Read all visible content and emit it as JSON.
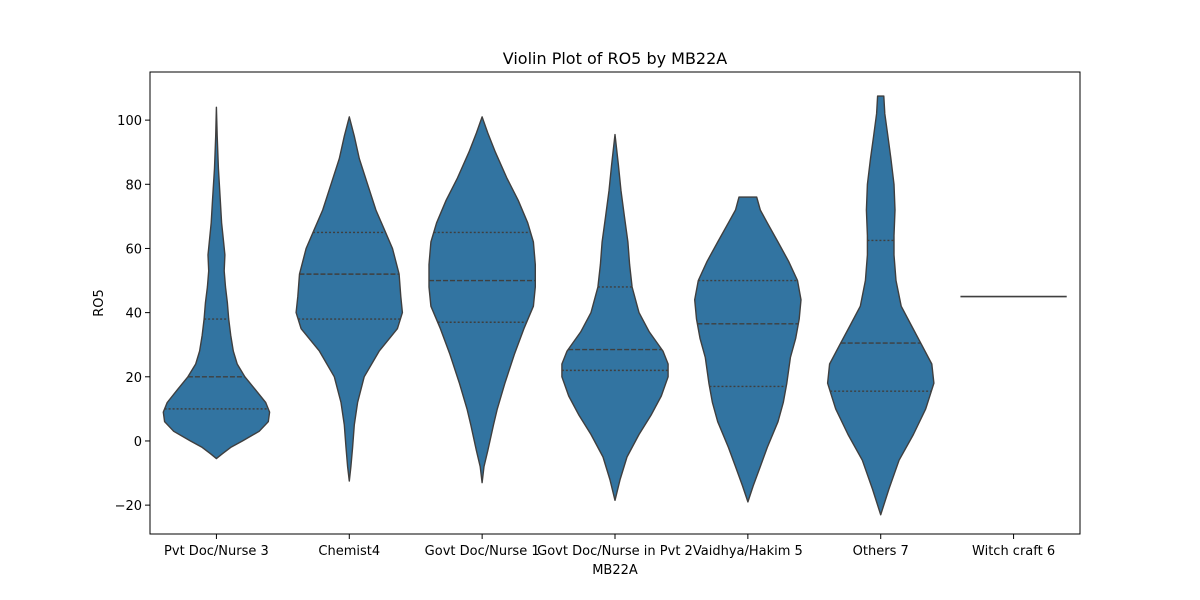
{
  "chart_data": {
    "type": "violin",
    "title": "Violin Plot of RO5 by MB22A",
    "xlabel": "MB22A",
    "ylabel": "RO5",
    "ylim": [
      -29,
      115
    ],
    "yticks": [
      -20,
      0,
      20,
      40,
      60,
      80,
      100
    ],
    "grid": false,
    "legend": "none",
    "colors": {
      "fill": "#3274a1",
      "edge": "#3f3f3f",
      "axis": "#000000"
    },
    "categories": [
      "Pvt Doc/Nurse 3",
      "Chemist4",
      "Govt Doc/Nurse 1",
      "Govt Doc/Nurse in Pvt 2",
      "Vaidhya/Hakim 5",
      "Others 7",
      "Witch craft 6"
    ],
    "violins": [
      {
        "category": "Pvt Doc/Nurse 3",
        "quartiles": [
          10,
          20,
          38
        ],
        "profile": [
          [
            -5.5,
            0
          ],
          [
            -4,
            0.045
          ],
          [
            -2,
            0.11
          ],
          [
            0,
            0.2
          ],
          [
            3,
            0.33
          ],
          [
            6,
            0.4
          ],
          [
            9,
            0.41
          ],
          [
            12,
            0.38
          ],
          [
            16,
            0.3
          ],
          [
            20,
            0.22
          ],
          [
            24,
            0.16
          ],
          [
            28,
            0.13
          ],
          [
            33,
            0.11
          ],
          [
            38,
            0.095
          ],
          [
            43,
            0.085
          ],
          [
            48,
            0.07
          ],
          [
            53,
            0.06
          ],
          [
            58,
            0.065
          ],
          [
            62,
            0.055
          ],
          [
            68,
            0.04
          ],
          [
            75,
            0.03
          ],
          [
            85,
            0.015
          ],
          [
            95,
            0.006
          ],
          [
            104,
            0
          ]
        ]
      },
      {
        "category": "Chemist4",
        "quartiles": [
          38,
          52,
          65
        ],
        "profile": [
          [
            -12.5,
            0
          ],
          [
            -8,
            0.01
          ],
          [
            -2,
            0.02
          ],
          [
            5,
            0.03
          ],
          [
            12,
            0.05
          ],
          [
            20,
            0.09
          ],
          [
            28,
            0.18
          ],
          [
            35,
            0.29
          ],
          [
            40,
            0.32
          ],
          [
            45,
            0.31
          ],
          [
            52,
            0.3
          ],
          [
            60,
            0.26
          ],
          [
            66,
            0.21
          ],
          [
            72,
            0.16
          ],
          [
            80,
            0.11
          ],
          [
            88,
            0.06
          ],
          [
            95,
            0.03
          ],
          [
            101,
            0
          ]
        ]
      },
      {
        "category": "Govt Doc/Nurse 1",
        "quartiles": [
          37,
          50,
          65
        ],
        "profile": [
          [
            -13,
            0
          ],
          [
            -8,
            0.01
          ],
          [
            -3,
            0.03
          ],
          [
            5,
            0.06
          ],
          [
            10,
            0.08
          ],
          [
            18,
            0.12
          ],
          [
            27,
            0.17
          ],
          [
            35,
            0.22
          ],
          [
            42,
            0.27
          ],
          [
            48,
            0.28
          ],
          [
            55,
            0.28
          ],
          [
            62,
            0.27
          ],
          [
            68,
            0.24
          ],
          [
            75,
            0.19
          ],
          [
            82,
            0.13
          ],
          [
            90,
            0.07
          ],
          [
            96,
            0.03
          ],
          [
            101,
            0
          ]
        ]
      },
      {
        "category": "Govt Doc/Nurse in Pvt 2",
        "quartiles": [
          22,
          28.5,
          48
        ],
        "profile": [
          [
            -18.5,
            0
          ],
          [
            -12,
            0.03
          ],
          [
            -5,
            0.07
          ],
          [
            2,
            0.14
          ],
          [
            8,
            0.21
          ],
          [
            14,
            0.27
          ],
          [
            20,
            0.31
          ],
          [
            24,
            0.31
          ],
          [
            28,
            0.28
          ],
          [
            34,
            0.2
          ],
          [
            40,
            0.14
          ],
          [
            48,
            0.1
          ],
          [
            55,
            0.085
          ],
          [
            62,
            0.075
          ],
          [
            70,
            0.055
          ],
          [
            78,
            0.035
          ],
          [
            86,
            0.02
          ],
          [
            95.5,
            0
          ]
        ]
      },
      {
        "category": "Vaidhya/Hakim 5",
        "quartiles": [
          17,
          36.5,
          50
        ],
        "profile": [
          [
            -19,
            0
          ],
          [
            -14,
            0.03
          ],
          [
            -8,
            0.07
          ],
          [
            -2,
            0.11
          ],
          [
            6,
            0.17
          ],
          [
            12,
            0.2
          ],
          [
            18,
            0.22
          ],
          [
            26,
            0.24
          ],
          [
            32,
            0.27
          ],
          [
            38,
            0.29
          ],
          [
            44,
            0.3
          ],
          [
            50,
            0.28
          ],
          [
            56,
            0.23
          ],
          [
            62,
            0.17
          ],
          [
            68,
            0.11
          ],
          [
            72,
            0.07
          ],
          [
            76,
            0.05
          ],
          [
            76,
            0
          ]
        ]
      },
      {
        "category": "Others 7",
        "quartiles": [
          15.5,
          30.5,
          62.5
        ],
        "profile": [
          [
            -23,
            0
          ],
          [
            -15,
            0.04
          ],
          [
            -6,
            0.09
          ],
          [
            2,
            0.16
          ],
          [
            10,
            0.22
          ],
          [
            18,
            0.26
          ],
          [
            24,
            0.25
          ],
          [
            30,
            0.2
          ],
          [
            36,
            0.15
          ],
          [
            42,
            0.1
          ],
          [
            50,
            0.075
          ],
          [
            58,
            0.065
          ],
          [
            64,
            0.065
          ],
          [
            72,
            0.07
          ],
          [
            80,
            0.065
          ],
          [
            88,
            0.05
          ],
          [
            95,
            0.035
          ],
          [
            102,
            0.02
          ],
          [
            107.5,
            0.015
          ],
          [
            107.5,
            0
          ]
        ]
      },
      {
        "category": "Witch craft 6",
        "quartiles": [],
        "single_value": 45
      }
    ]
  }
}
